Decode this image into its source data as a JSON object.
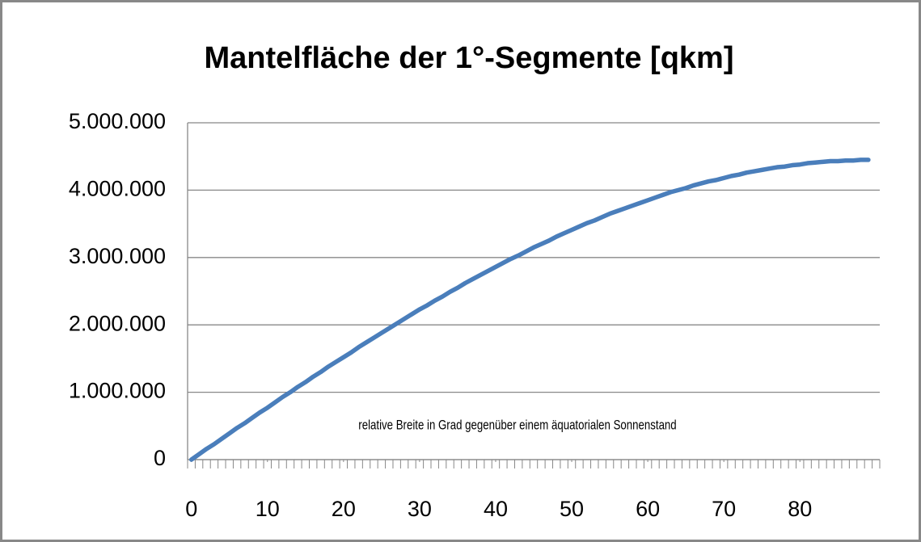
{
  "chart_data": {
    "type": "line",
    "title": "Mantelfläche der 1°-Segmente [qkm]",
    "annotation": "relative Breite in Grad gegenüber einem äquatorialen Sonnenstand",
    "x": [
      0,
      1,
      2,
      3,
      4,
      5,
      6,
      7,
      8,
      9,
      10,
      11,
      12,
      13,
      14,
      15,
      16,
      17,
      18,
      19,
      20,
      21,
      22,
      23,
      24,
      25,
      26,
      27,
      28,
      29,
      30,
      31,
      32,
      33,
      34,
      35,
      36,
      37,
      38,
      39,
      40,
      41,
      42,
      43,
      44,
      45,
      46,
      47,
      48,
      49,
      50,
      51,
      52,
      53,
      54,
      55,
      56,
      57,
      58,
      59,
      60,
      61,
      62,
      63,
      64,
      65,
      66,
      67,
      68,
      69,
      70,
      71,
      72,
      73,
      74,
      75,
      76,
      77,
      78,
      79,
      80,
      81,
      82,
      83,
      84,
      85,
      86,
      87,
      88,
      89
    ],
    "series": [
      {
        "name": "Mantelfläche",
        "color": "#4a7ebb",
        "values": [
          0,
          80000,
          160000,
          230000,
          310000,
          390000,
          470000,
          540000,
          620000,
          700000,
          770000,
          850000,
          930000,
          1000000,
          1080000,
          1150000,
          1230000,
          1300000,
          1380000,
          1450000,
          1520000,
          1590000,
          1670000,
          1740000,
          1810000,
          1880000,
          1950000,
          2020000,
          2090000,
          2160000,
          2230000,
          2290000,
          2360000,
          2420000,
          2490000,
          2550000,
          2620000,
          2680000,
          2740000,
          2800000,
          2860000,
          2920000,
          2980000,
          3030000,
          3090000,
          3150000,
          3200000,
          3250000,
          3310000,
          3360000,
          3410000,
          3460000,
          3510000,
          3550000,
          3600000,
          3650000,
          3690000,
          3730000,
          3770000,
          3810000,
          3850000,
          3890000,
          3930000,
          3970000,
          4000000,
          4030000,
          4070000,
          4100000,
          4130000,
          4150000,
          4180000,
          4210000,
          4230000,
          4260000,
          4280000,
          4300000,
          4320000,
          4340000,
          4350000,
          4370000,
          4380000,
          4400000,
          4410000,
          4420000,
          4430000,
          4430000,
          4440000,
          4440000,
          4450000,
          4450000
        ]
      }
    ],
    "xlim": [
      -0.5,
      90.5
    ],
    "xticks": [
      0,
      10,
      20,
      30,
      40,
      50,
      60,
      70,
      80
    ],
    "ylim": [
      0,
      5000000
    ],
    "yticks": [
      0,
      {
        "value": 1000000,
        "label": "1.000.000"
      },
      {
        "value": 2000000,
        "label": "2.000.000"
      },
      {
        "value": 3000000,
        "label": "3.000.000"
      },
      {
        "value": 4000000,
        "label": "4.000.000"
      },
      {
        "value": 5000000,
        "label": "5.000.000"
      }
    ],
    "grid": true
  }
}
